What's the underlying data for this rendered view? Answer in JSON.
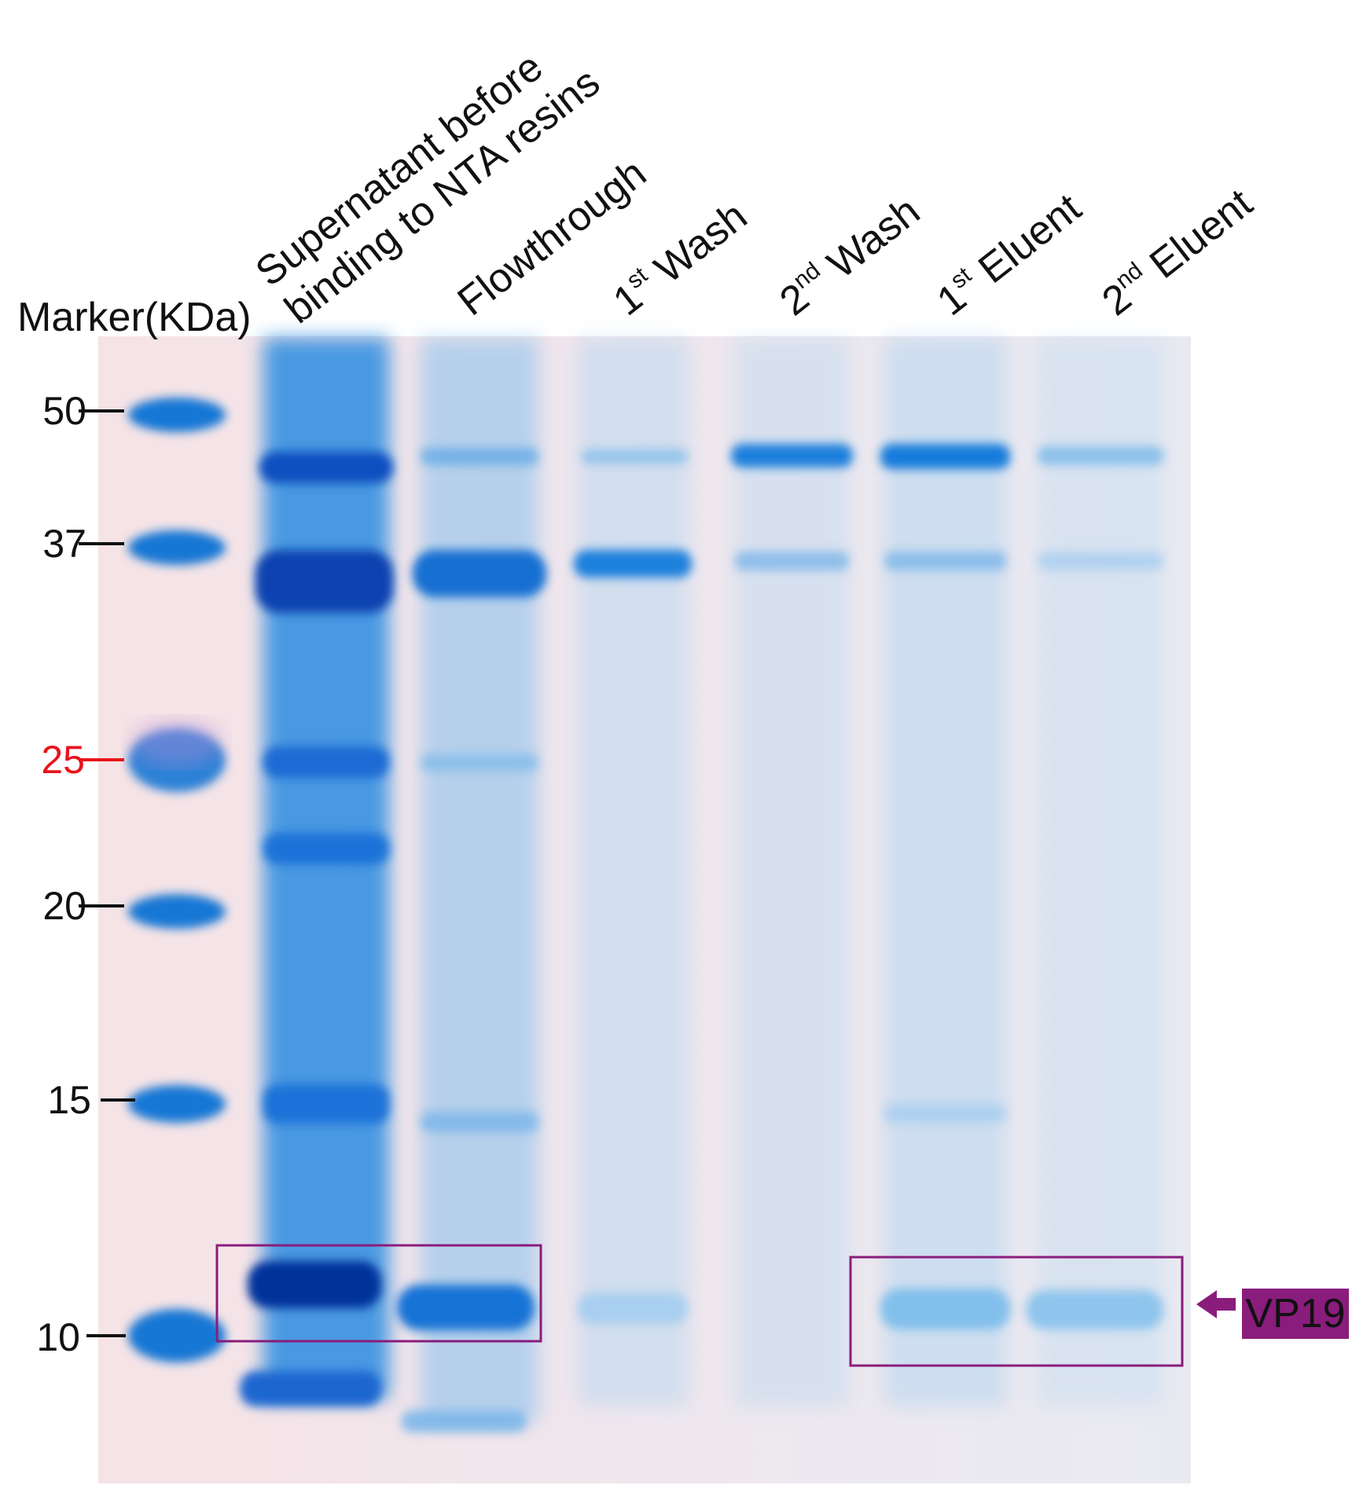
{
  "marker_title": "Marker(KDa)",
  "lanes": [
    {
      "lines": [
        "Supernatant before",
        "binding to NTA resins"
      ]
    },
    {
      "lines": [
        "Flowthrough"
      ]
    },
    {
      "num": "1",
      "sup": "st",
      "rest": " Wash"
    },
    {
      "num": "2",
      "sup": "nd",
      "rest": " Wash"
    },
    {
      "num": "1",
      "sup": "st",
      "rest": " Eluent"
    },
    {
      "num": "2",
      "sup": "nd",
      "rest": " Eluent"
    }
  ],
  "markers": [
    {
      "label": "50",
      "color": "#111111"
    },
    {
      "label": "37",
      "color": "#111111"
    },
    {
      "label": "25",
      "color": "#e8141c"
    },
    {
      "label": "20",
      "color": "#111111"
    },
    {
      "label": "15",
      "color": "#111111"
    },
    {
      "label": "10",
      "color": "#111111"
    }
  ],
  "callout": {
    "label": "VP19",
    "color": "#8a1c7c"
  },
  "colors": {
    "gel": "#f3e7ea",
    "stain": "#1e6fd6",
    "box": "#8a1c7c"
  }
}
